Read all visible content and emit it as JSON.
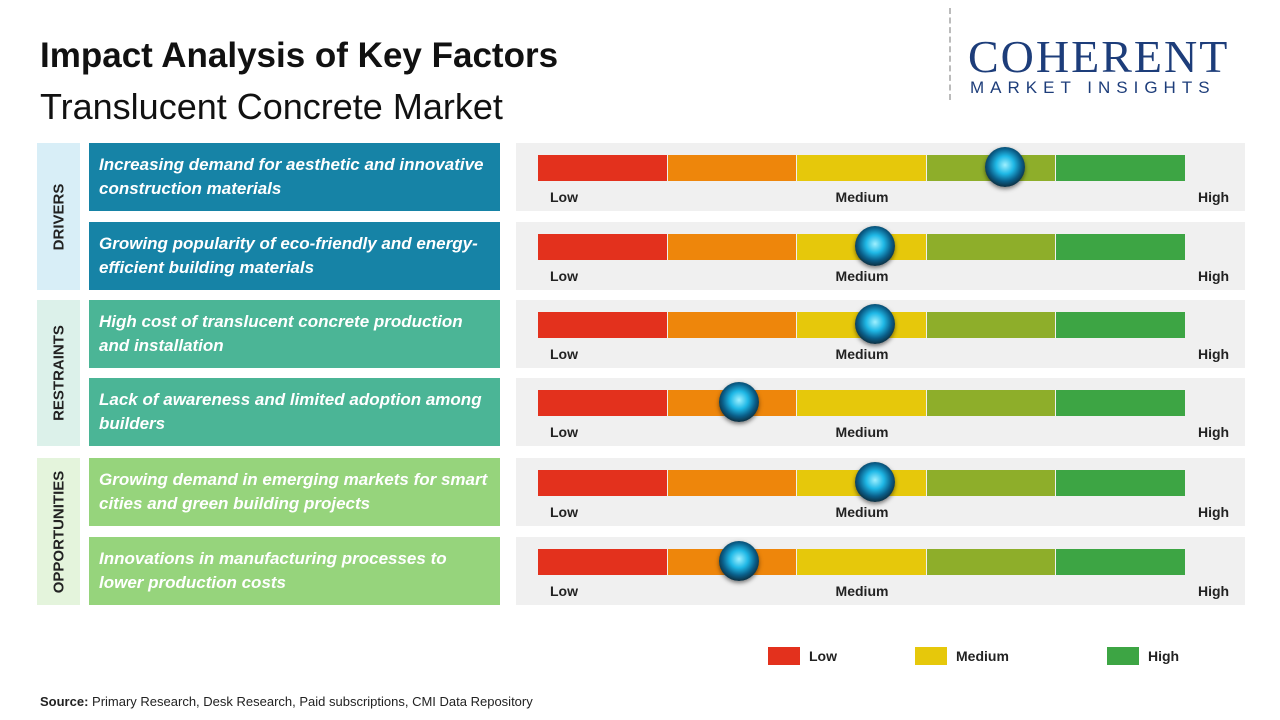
{
  "header": {
    "title": "Impact Analysis of Key Factors",
    "subtitle": "Translucent Concrete Market"
  },
  "logo": {
    "name": "COHERENT",
    "tagline": "MARKET INSIGHTS"
  },
  "scale": {
    "low": "Low",
    "medium": "Medium",
    "high": "High"
  },
  "segment_colors": [
    "#e3311d",
    "#ee860b",
    "#e6c80b",
    "#8eae2a",
    "#3da544"
  ],
  "sections": [
    {
      "label": "DRIVERS",
      "color": "#1683a6",
      "band": "#d8eef7",
      "factors": [
        {
          "text": "Increasing demand for aesthetic and innovative construction materials",
          "impact": 72
        },
        {
          "text": "Growing popularity of eco-friendly and energy-efficient building materials",
          "impact": 52
        }
      ]
    },
    {
      "label": "RESTRAINTS",
      "color": "#4bb596",
      "band": "#dcf1ea",
      "factors": [
        {
          "text": "High cost of translucent concrete production and installation",
          "impact": 52
        },
        {
          "text": "Lack of awareness and limited adoption among builders",
          "impact": 31
        }
      ]
    },
    {
      "label": "OPPORTUNITIES",
      "color": "#96d47c",
      "band": "#e4f4dc",
      "factors": [
        {
          "text": "Growing demand in emerging markets for smart cities and green building projects",
          "impact": 52
        },
        {
          "text": "Innovations in manufacturing processes to lower production costs",
          "impact": 31
        }
      ]
    }
  ],
  "legend": [
    {
      "label": "Low",
      "color": "#e3311d"
    },
    {
      "label": "Medium",
      "color": "#e6c80b"
    },
    {
      "label": "High",
      "color": "#3da544"
    }
  ],
  "source": {
    "label": "Source:",
    "text": "Primary Research, Desk Research, Paid subscriptions, CMI Data Repository"
  }
}
